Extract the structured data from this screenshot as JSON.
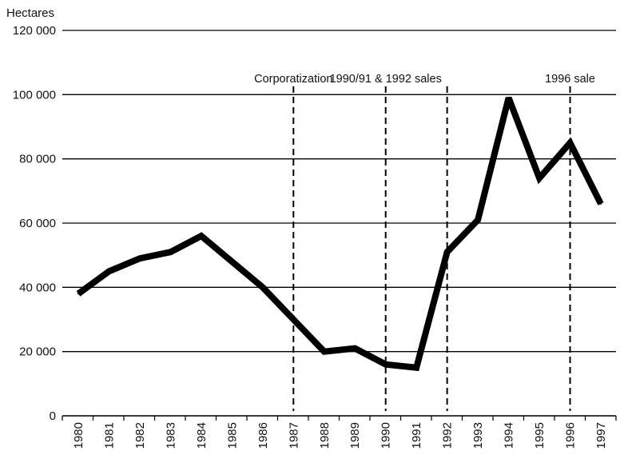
{
  "chart_data": {
    "type": "line",
    "title": "",
    "ylabel": "Hectares",
    "xlabel": "",
    "ylim": [
      0,
      120000
    ],
    "yticks": [
      {
        "value": 0,
        "label": "0"
      },
      {
        "value": 20000,
        "label": "20 000"
      },
      {
        "value": 40000,
        "label": "40 000"
      },
      {
        "value": 60000,
        "label": "60 000"
      },
      {
        "value": 80000,
        "label": "80 000"
      },
      {
        "value": 100000,
        "label": "100 000"
      },
      {
        "value": 120000,
        "label": "120 000"
      }
    ],
    "grid": "horizontal",
    "x": [
      "1980",
      "1981",
      "1982",
      "1983",
      "1984",
      "1985",
      "1986",
      "1987",
      "1988",
      "1989",
      "1990",
      "1991",
      "1992",
      "1993",
      "1994",
      "1995",
      "1996",
      "1997"
    ],
    "series": [
      {
        "values": [
          38000,
          45000,
          49000,
          51000,
          56000,
          48000,
          40000,
          30000,
          20000,
          21000,
          16000,
          15000,
          51000,
          61000,
          99000,
          74000,
          85000,
          66000
        ],
        "color": "#000000"
      }
    ],
    "annotations": [
      {
        "label": "Corporatization",
        "x": 1987
      },
      {
        "label": "1990/91 & 1992 sales",
        "x": 1990
      },
      {
        "label": "",
        "x": 1992
      },
      {
        "label": "1996 sale",
        "x": 1996
      }
    ]
  }
}
